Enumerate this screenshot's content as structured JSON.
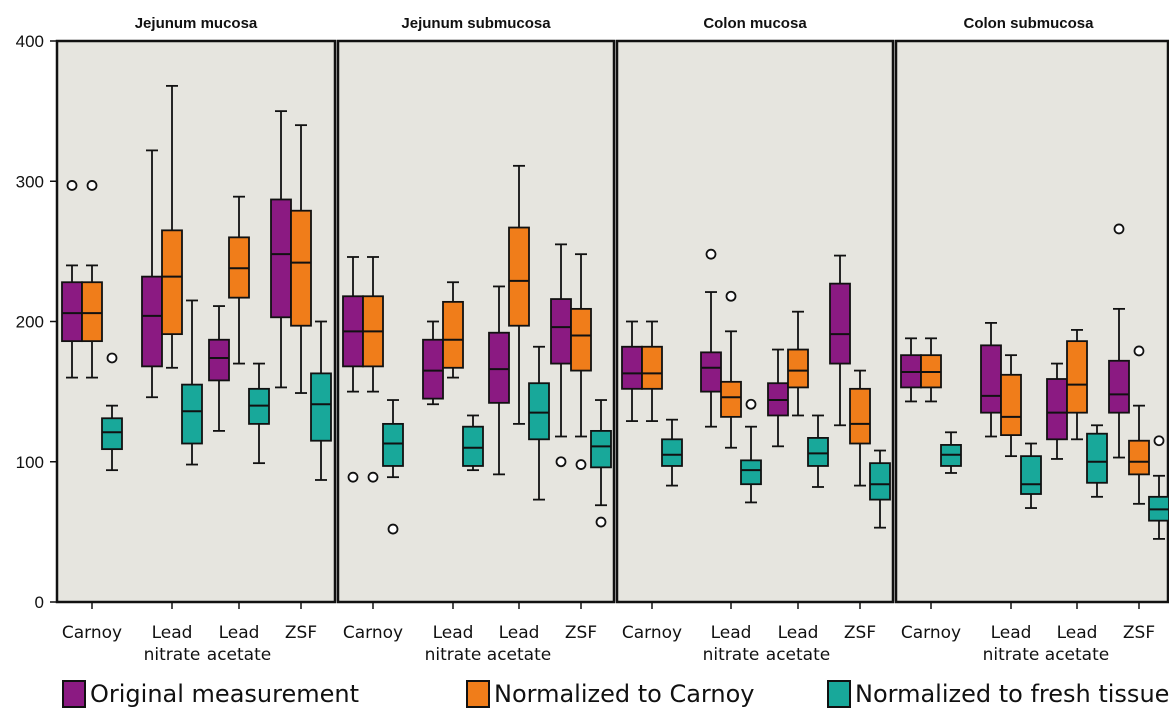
{
  "chart_data": {
    "type": "boxplot",
    "y_ticks": [
      "0",
      "100",
      "200",
      "300",
      "400"
    ],
    "ylim": [
      0,
      400
    ],
    "categories": [
      [
        "Carnoy"
      ],
      [
        "Lead",
        "nitrate"
      ],
      [
        "Lead",
        "acetate"
      ],
      [
        "ZSF"
      ]
    ],
    "series": [
      {
        "name": "Original measurement",
        "color": "#8b1a82"
      },
      {
        "name": "Normalized to Carnoy",
        "color": "#f07d1a"
      },
      {
        "name": "Normalized to fresh tissue",
        "color": "#18a89a"
      }
    ],
    "panel_background": "#e6e5df",
    "panels": [
      {
        "title": "Jejunum mucosa",
        "boxes": [
          [
            {
              "min": 160,
              "q1": 186,
              "median": 206,
              "q3": 228,
              "max": 240,
              "outliers": [
                297
              ]
            },
            {
              "min": 160,
              "q1": 186,
              "median": 206,
              "q3": 228,
              "max": 240,
              "outliers": [
                297
              ]
            },
            {
              "min": 94,
              "q1": 109,
              "median": 121,
              "q3": 131,
              "max": 140,
              "outliers": [
                174
              ]
            }
          ],
          [
            {
              "min": 146,
              "q1": 168,
              "median": 204,
              "q3": 232,
              "max": 322,
              "outliers": []
            },
            {
              "min": 167,
              "q1": 191,
              "median": 232,
              "q3": 265,
              "max": 368,
              "outliers": []
            },
            {
              "min": 98,
              "q1": 113,
              "median": 136,
              "q3": 155,
              "max": 215,
              "outliers": []
            }
          ],
          [
            {
              "min": 122,
              "q1": 158,
              "median": 174,
              "q3": 187,
              "max": 211,
              "outliers": []
            },
            {
              "min": 170,
              "q1": 217,
              "median": 238,
              "q3": 260,
              "max": 289,
              "outliers": []
            },
            {
              "min": 99,
              "q1": 127,
              "median": 140,
              "q3": 152,
              "max": 170,
              "outliers": []
            }
          ],
          [
            {
              "min": 153,
              "q1": 203,
              "median": 248,
              "q3": 287,
              "max": 350,
              "outliers": []
            },
            {
              "min": 149,
              "q1": 197,
              "median": 242,
              "q3": 279,
              "max": 340,
              "outliers": []
            },
            {
              "min": 87,
              "q1": 115,
              "median": 141,
              "q3": 163,
              "max": 200,
              "outliers": []
            }
          ]
        ]
      },
      {
        "title": "Jejunum submucosa",
        "boxes": [
          [
            {
              "min": 150,
              "q1": 168,
              "median": 193,
              "q3": 218,
              "max": 246,
              "outliers": [
                89
              ]
            },
            {
              "min": 150,
              "q1": 168,
              "median": 193,
              "q3": 218,
              "max": 246,
              "outliers": [
                89
              ]
            },
            {
              "min": 89,
              "q1": 97,
              "median": 113,
              "q3": 127,
              "max": 144,
              "outliers": [
                52
              ]
            }
          ],
          [
            {
              "min": 141,
              "q1": 145,
              "median": 165,
              "q3": 187,
              "max": 200,
              "outliers": []
            },
            {
              "min": 160,
              "q1": 167,
              "median": 187,
              "q3": 214,
              "max": 228,
              "outliers": []
            },
            {
              "min": 94,
              "q1": 97,
              "median": 110,
              "q3": 125,
              "max": 133,
              "outliers": []
            }
          ],
          [
            {
              "min": 91,
              "q1": 142,
              "median": 166,
              "q3": 192,
              "max": 225,
              "outliers": []
            },
            {
              "min": 127,
              "q1": 197,
              "median": 229,
              "q3": 267,
              "max": 311,
              "outliers": []
            },
            {
              "min": 73,
              "q1": 116,
              "median": 135,
              "q3": 156,
              "max": 182,
              "outliers": []
            }
          ],
          [
            {
              "min": 118,
              "q1": 170,
              "median": 196,
              "q3": 216,
              "max": 255,
              "outliers": [
                100
              ]
            },
            {
              "min": 118,
              "q1": 165,
              "median": 190,
              "q3": 209,
              "max": 248,
              "outliers": [
                98
              ]
            },
            {
              "min": 69,
              "q1": 96,
              "median": 111,
              "q3": 122,
              "max": 144,
              "outliers": [
                57
              ]
            }
          ]
        ]
      },
      {
        "title": "Colon mucosa",
        "boxes": [
          [
            {
              "min": 129,
              "q1": 152,
              "median": 163,
              "q3": 182,
              "max": 200,
              "outliers": []
            },
            {
              "min": 129,
              "q1": 152,
              "median": 163,
              "q3": 182,
              "max": 200,
              "outliers": []
            },
            {
              "min": 83,
              "q1": 97,
              "median": 105,
              "q3": 116,
              "max": 130,
              "outliers": []
            }
          ],
          [
            {
              "min": 125,
              "q1": 150,
              "median": 167,
              "q3": 178,
              "max": 221,
              "outliers": [
                248
              ]
            },
            {
              "min": 110,
              "q1": 132,
              "median": 146,
              "q3": 157,
              "max": 193,
              "outliers": [
                218
              ]
            },
            {
              "min": 71,
              "q1": 84,
              "median": 94,
              "q3": 101,
              "max": 125,
              "outliers": [
                141
              ]
            }
          ],
          [
            {
              "min": 111,
              "q1": 133,
              "median": 144,
              "q3": 156,
              "max": 180,
              "outliers": []
            },
            {
              "min": 133,
              "q1": 153,
              "median": 165,
              "q3": 180,
              "max": 207,
              "outliers": []
            },
            {
              "min": 82,
              "q1": 97,
              "median": 106,
              "q3": 117,
              "max": 133,
              "outliers": []
            }
          ],
          [
            {
              "min": 126,
              "q1": 170,
              "median": 191,
              "q3": 227,
              "max": 247,
              "outliers": []
            },
            {
              "min": 83,
              "q1": 113,
              "median": 127,
              "q3": 152,
              "max": 165,
              "outliers": []
            },
            {
              "min": 53,
              "q1": 73,
              "median": 84,
              "q3": 99,
              "max": 108,
              "outliers": []
            }
          ]
        ]
      },
      {
        "title": "Colon submucosa",
        "boxes": [
          [
            {
              "min": 143,
              "q1": 153,
              "median": 164,
              "q3": 176,
              "max": 188,
              "outliers": []
            },
            {
              "min": 143,
              "q1": 153,
              "median": 164,
              "q3": 176,
              "max": 188,
              "outliers": []
            },
            {
              "min": 92,
              "q1": 97,
              "median": 105,
              "q3": 112,
              "max": 121,
              "outliers": []
            }
          ],
          [
            {
              "min": 118,
              "q1": 135,
              "median": 147,
              "q3": 183,
              "max": 199,
              "outliers": []
            },
            {
              "min": 104,
              "q1": 119,
              "median": 132,
              "q3": 162,
              "max": 176,
              "outliers": []
            },
            {
              "min": 67,
              "q1": 77,
              "median": 84,
              "q3": 104,
              "max": 113,
              "outliers": []
            }
          ],
          [
            {
              "min": 102,
              "q1": 116,
              "median": 135,
              "q3": 159,
              "max": 170,
              "outliers": []
            },
            {
              "min": 116,
              "q1": 135,
              "median": 155,
              "q3": 186,
              "max": 194,
              "outliers": []
            },
            {
              "min": 75,
              "q1": 85,
              "median": 100,
              "q3": 120,
              "max": 126,
              "outliers": []
            }
          ],
          [
            {
              "min": 103,
              "q1": 135,
              "median": 148,
              "q3": 172,
              "max": 209,
              "outliers": [
                266
              ]
            },
            {
              "min": 70,
              "q1": 91,
              "median": 100,
              "q3": 115,
              "max": 140,
              "outliers": [
                179
              ]
            },
            {
              "min": 45,
              "q1": 58,
              "median": 66,
              "q3": 75,
              "max": 90,
              "outliers": [
                115
              ]
            }
          ]
        ]
      }
    ]
  }
}
